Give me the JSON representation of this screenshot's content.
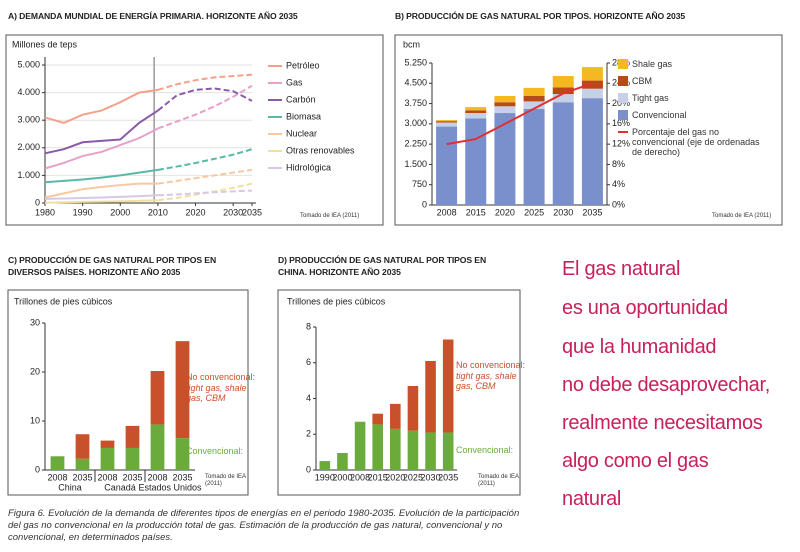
{
  "chart_data": [
    {
      "type": "line",
      "title": "A) DEMANDA MUNDIAL DE ENERGÍA PRIMARIA. HORIZONTE AÑO 2035",
      "ylabel": "Millones de teps",
      "source": "Tomado de IEA (2011)",
      "x": [
        1980,
        1985,
        1990,
        1995,
        2000,
        2005,
        2010,
        2015,
        2020,
        2025,
        2030,
        2035
      ],
      "xlim": [
        1980,
        2035
      ],
      "xticks": [
        1980,
        1990,
        2000,
        2010,
        2020,
        2030,
        2035
      ],
      "ylim": [
        0,
        5000
      ],
      "yticks": [
        0,
        {
          "value": 1000,
          "label": "1.000"
        },
        {
          "value": 2000,
          "label": "2.000"
        },
        {
          "value": 3000,
          "label": "3.000"
        },
        {
          "value": 4000,
          "label": "4.000"
        },
        {
          "value": 5000,
          "label": "5.000"
        }
      ],
      "grid": true,
      "vline": 2009,
      "series": [
        {
          "name": "Petróleo",
          "color": "#f4a08a",
          "values": [
            3100,
            2900,
            3200,
            3350,
            3650,
            4000,
            4100,
            4300,
            4450,
            4550,
            4600,
            4650
          ]
        },
        {
          "name": "Gas",
          "color": "#e8a0c8",
          "values": [
            1250,
            1450,
            1700,
            1850,
            2100,
            2350,
            2700,
            2950,
            3200,
            3500,
            3850,
            4250
          ]
        },
        {
          "name": "Carbón",
          "color": "#8a5aa8",
          "values": [
            1800,
            1950,
            2200,
            2250,
            2300,
            2900,
            3350,
            3900,
            4100,
            4150,
            4050,
            3700
          ]
        },
        {
          "name": "Biomasa",
          "color": "#5ab8a8",
          "values": [
            750,
            800,
            850,
            920,
            1000,
            1100,
            1200,
            1320,
            1450,
            1600,
            1750,
            1950
          ]
        },
        {
          "name": "Nuclear",
          "color": "#f8c8a0",
          "values": [
            200,
            350,
            500,
            580,
            650,
            700,
            700,
            800,
            900,
            1000,
            1100,
            1200
          ]
        },
        {
          "name": "Otras renovables",
          "color": "#f0e0a0",
          "values": [
            10,
            25,
            40,
            50,
            60,
            80,
            100,
            180,
            300,
            420,
            550,
            700
          ]
        },
        {
          "name": "Hidrológica",
          "color": "#d8c8e8",
          "values": [
            150,
            165,
            180,
            200,
            220,
            250,
            280,
            310,
            350,
            390,
            420,
            450
          ]
        }
      ]
    },
    {
      "type": "bar",
      "title": "B) PRODUCCIÓN DE GAS NATURAL POR TIPOS. HORIZONTE AÑO 2035",
      "ylabel": "bcm",
      "source": "Tomado de IEA (2011)",
      "categories": [
        "2008",
        "2015",
        "2020",
        "2025",
        "2030",
        "2035"
      ],
      "ylim": [
        0,
        5250
      ],
      "yticks": [
        0,
        750,
        {
          "value": 1500,
          "label": "1.500"
        },
        {
          "value": 2250,
          "label": "2.250"
        },
        {
          "value": 3000,
          "label": "3.000"
        },
        {
          "value": 3750,
          "label": "3.750"
        },
        {
          "value": 4500,
          "label": "4.500"
        },
        {
          "value": 5250,
          "label": "5.250"
        }
      ],
      "y2lim": [
        0,
        28
      ],
      "y2ticks": [
        {
          "value": 0,
          "label": "0%"
        },
        {
          "value": 4,
          "label": "4%"
        },
        {
          "value": 8,
          "label": "8%"
        },
        {
          "value": 12,
          "label": "12%"
        },
        {
          "value": 16,
          "label": "16%"
        },
        {
          "value": 20,
          "label": "20%"
        },
        {
          "value": 24,
          "label": "24%"
        },
        {
          "value": 28,
          "label": "28%"
        }
      ],
      "series": [
        {
          "name": "Convencional",
          "color": "#7a90cc",
          "values": [
            2900,
            3200,
            3400,
            3550,
            3800,
            3950
          ]
        },
        {
          "name": "Tight gas",
          "color": "#c8d0e8",
          "values": [
            150,
            200,
            250,
            280,
            300,
            350
          ]
        },
        {
          "name": "CBM",
          "color": "#b84a18",
          "values": [
            50,
            100,
            150,
            200,
            250,
            300
          ]
        },
        {
          "name": "Shale gas",
          "color": "#f5b820",
          "values": [
            40,
            120,
            230,
            300,
            420,
            500
          ]
        },
        {
          "name": "Porcentaje del gas no convencional (eje de ordenadas de derecho)",
          "color": "#e03030",
          "axis": "y2",
          "values": [
            12,
            13,
            16,
            19,
            22,
            24
          ]
        }
      ]
    },
    {
      "type": "bar",
      "title": "C) PRODUCCIÓN DE GAS NATURAL POR TIPOS EN DIVERSOS PAÍSES. HORIZONTE AÑO 2035",
      "ylabel": "Trillones de pies cúbicos",
      "source": "Tomado de IEA (2011)",
      "categories": [
        "2008",
        "2035",
        "2008",
        "2035",
        "2008",
        "2035"
      ],
      "groups": [
        "China",
        "Canadá",
        "Estados Unidos"
      ],
      "ylim": [
        0,
        30
      ],
      "yticks": [
        0,
        10,
        20,
        30
      ],
      "annotation": "tight gas, shale gas, CBM",
      "series": [
        {
          "name": "Convencional:",
          "color": "#6aab3c",
          "values": [
            2.8,
            2.3,
            4.5,
            4.5,
            9.3,
            6.5
          ]
        },
        {
          "name": "No convencional:",
          "color": "#c8502a",
          "values": [
            0,
            5,
            1.5,
            4.5,
            10.9,
            19.8
          ]
        }
      ]
    },
    {
      "type": "bar",
      "title": "D) PRODUCCIÓN DE GAS NATURAL POR TIPOS EN CHINA. HORIZONTE AÑO 2035",
      "ylabel": "Trillones de pies cúbicos",
      "source": "Tomado de IEA (2011)",
      "categories": [
        "1990",
        "2000",
        "2008",
        "2015",
        "2020",
        "2025",
        "2030",
        "2035"
      ],
      "ylim": [
        0,
        8
      ],
      "yticks": [
        0,
        2,
        4,
        6,
        8
      ],
      "annotation": "tight gas, shale gas, CBM",
      "series": [
        {
          "name": "Convencional:",
          "color": "#6aab3c",
          "values": [
            0.5,
            0.95,
            2.7,
            2.55,
            2.3,
            2.2,
            2.1,
            2.1
          ]
        },
        {
          "name": "No convencional:",
          "color": "#c8502a",
          "values": [
            0,
            0,
            0,
            0.6,
            1.4,
            2.5,
            4.0,
            5.2
          ]
        }
      ]
    }
  ],
  "quote": {
    "lines": [
      "El gas natural",
      "es una oportunidad",
      "que la humanidad",
      "no debe desaprovechar,",
      "realmente necesitamos",
      "algo como el gas",
      "natural"
    ]
  },
  "caption": "Figura 6. Evolución de la demanda de diferentes tipos de energías en el periodo 1980-2035. Evolución de la participación del gas no convencional en la producción total de gas. Estimación de la producción de gas natural, convencional y no convencional, en determinados países."
}
